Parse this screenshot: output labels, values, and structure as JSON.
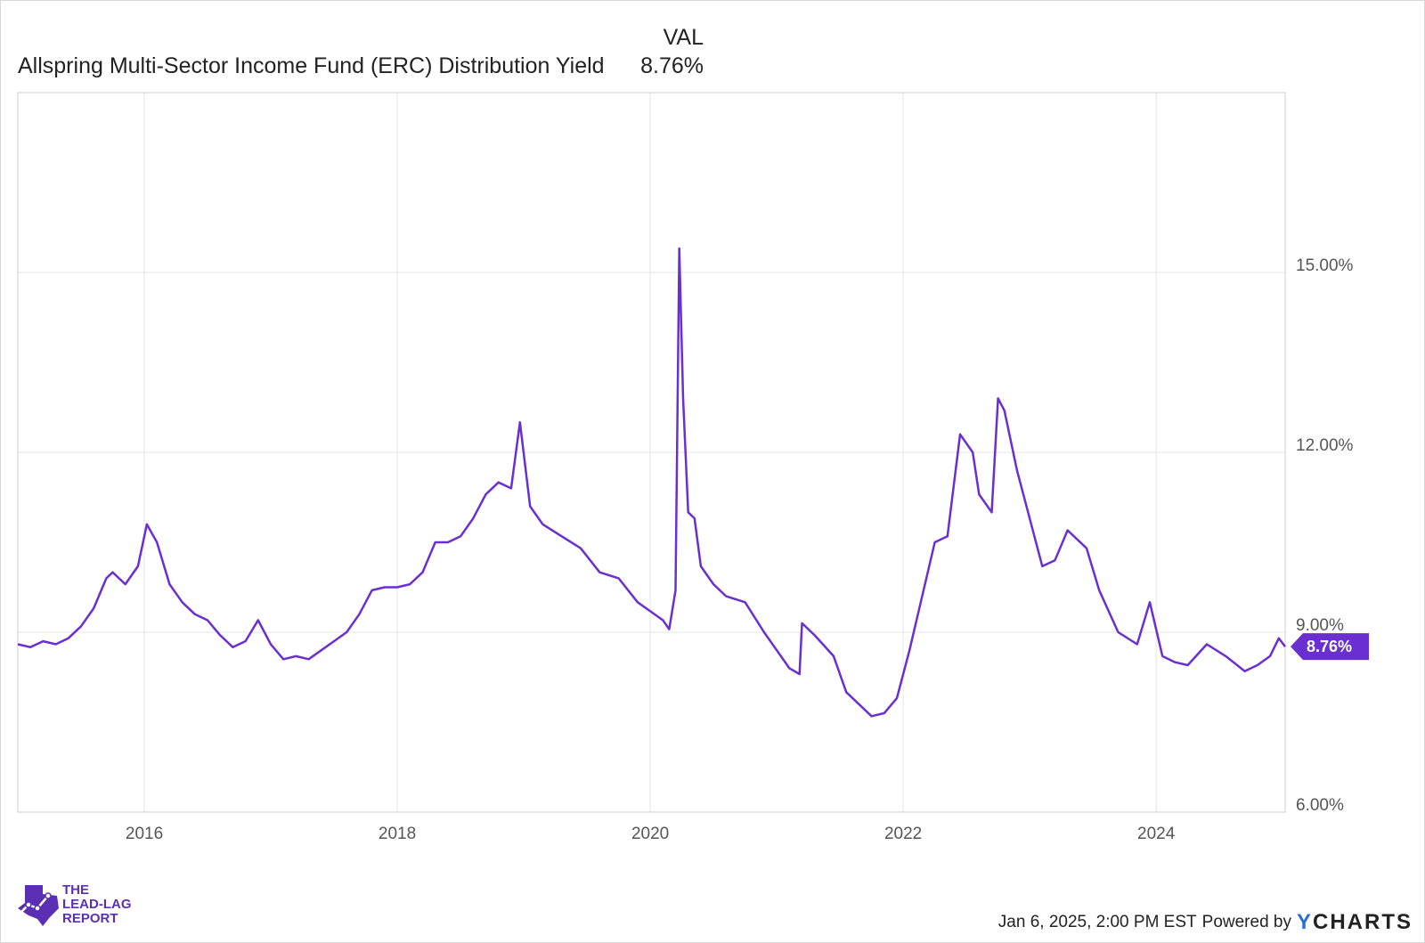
{
  "legend": {
    "column_header": "VAL",
    "series_name": "Allspring Multi-Sector Income Fund (ERC) Distribution Yield",
    "series_value": "8.76%"
  },
  "footer": {
    "timestamp": "Jan 6, 2025, 2:00 PM EST",
    "powered_by": "Powered by",
    "brand_y": "Y",
    "brand_rest": "CHARTS"
  },
  "logo": {
    "line1": "THE",
    "line2": "LEAD-LAG",
    "line3": "REPORT"
  },
  "colors": {
    "series": "#6a2fd0",
    "grid": "#e6e6e6",
    "axis": "#cccccc"
  },
  "chart_data": {
    "type": "line",
    "title": "",
    "xlabel": "",
    "ylabel": "",
    "x_ticks": [
      "2016",
      "2018",
      "2020",
      "2022",
      "2024"
    ],
    "y_ticks": [
      "6.00%",
      "9.00%",
      "12.00%",
      "15.00%"
    ],
    "ylim": [
      6.0,
      18.0
    ],
    "xlim": [
      2015.0,
      2025.02
    ],
    "grid": true,
    "last_value_label": "8.76%",
    "series": [
      {
        "name": "Allspring Multi-Sector Income Fund (ERC) Distribution Yield",
        "x": [
          2015.0,
          2015.1,
          2015.2,
          2015.3,
          2015.4,
          2015.5,
          2015.6,
          2015.7,
          2015.75,
          2015.85,
          2015.95,
          2016.02,
          2016.1,
          2016.2,
          2016.3,
          2016.4,
          2016.5,
          2016.6,
          2016.7,
          2016.8,
          2016.9,
          2017.0,
          2017.1,
          2017.2,
          2017.3,
          2017.4,
          2017.5,
          2017.6,
          2017.7,
          2017.8,
          2017.9,
          2018.0,
          2018.1,
          2018.2,
          2018.3,
          2018.4,
          2018.5,
          2018.6,
          2018.7,
          2018.8,
          2018.9,
          2018.97,
          2019.05,
          2019.15,
          2019.3,
          2019.45,
          2019.6,
          2019.75,
          2019.9,
          2020.0,
          2020.1,
          2020.15,
          2020.2,
          2020.23,
          2020.26,
          2020.3,
          2020.35,
          2020.4,
          2020.5,
          2020.6,
          2020.75,
          2020.9,
          2021.0,
          2021.1,
          2021.18,
          2021.2,
          2021.3,
          2021.45,
          2021.55,
          2021.65,
          2021.75,
          2021.85,
          2021.95,
          2022.05,
          2022.15,
          2022.25,
          2022.35,
          2022.45,
          2022.55,
          2022.6,
          2022.7,
          2022.75,
          2022.8,
          2022.9,
          2023.0,
          2023.1,
          2023.2,
          2023.3,
          2023.45,
          2023.55,
          2023.7,
          2023.85,
          2023.95,
          2024.05,
          2024.15,
          2024.25,
          2024.4,
          2024.55,
          2024.7,
          2024.8,
          2024.9,
          2024.97,
          2025.02
        ],
        "values": [
          8.8,
          8.75,
          8.85,
          8.8,
          8.9,
          9.1,
          9.4,
          9.9,
          10.0,
          9.8,
          10.1,
          10.8,
          10.5,
          9.8,
          9.5,
          9.3,
          9.2,
          8.95,
          8.75,
          8.85,
          9.2,
          8.8,
          8.55,
          8.6,
          8.55,
          8.7,
          8.85,
          9.0,
          9.3,
          9.7,
          9.75,
          9.75,
          9.8,
          10.0,
          10.5,
          10.5,
          10.6,
          10.9,
          11.3,
          11.5,
          11.4,
          12.5,
          11.1,
          10.8,
          10.6,
          10.4,
          10.0,
          9.9,
          9.5,
          9.35,
          9.2,
          9.05,
          9.7,
          15.4,
          12.9,
          11.0,
          10.9,
          10.1,
          9.8,
          9.6,
          9.5,
          9.0,
          8.7,
          8.4,
          8.3,
          9.15,
          8.95,
          8.6,
          8.0,
          7.8,
          7.6,
          7.65,
          7.9,
          8.7,
          9.6,
          10.5,
          10.6,
          12.3,
          12.0,
          11.3,
          11.0,
          12.9,
          12.7,
          11.7,
          10.9,
          10.1,
          10.2,
          10.7,
          10.4,
          9.7,
          9.0,
          8.8,
          9.5,
          8.6,
          8.5,
          8.45,
          8.8,
          8.6,
          8.35,
          8.45,
          8.6,
          8.9,
          8.76
        ]
      }
    ]
  }
}
